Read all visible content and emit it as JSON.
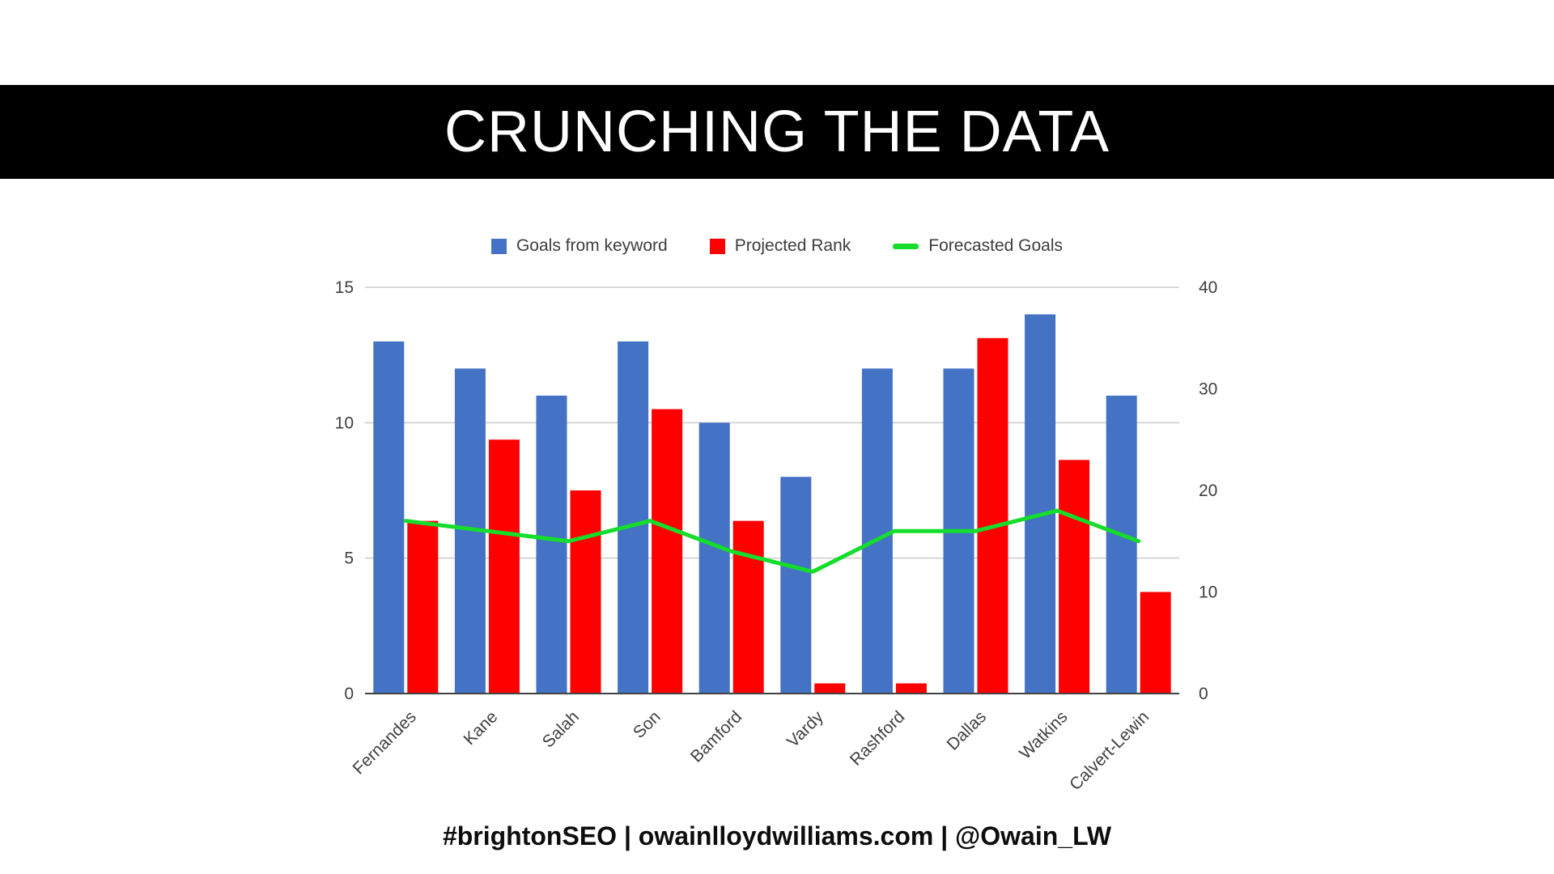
{
  "banner": {
    "title": "CRUNCHING THE DATA",
    "bg_color": "#000000",
    "text_color": "#ffffff"
  },
  "footer": {
    "text": "#brightonSEO | owainlloydwilliams.com | @Owain_LW"
  },
  "chart_data": {
    "type": "combo",
    "title": "",
    "categories": [
      "Fernandes",
      "Kane",
      "Salah",
      "Son",
      "Bamford",
      "Vardy",
      "Rashford",
      "Dallas",
      "Watkins",
      "Calvert-Lewin"
    ],
    "series": [
      {
        "name": "Goals from keyword",
        "type": "bar",
        "axis": "left",
        "color": "#4472c4",
        "values": [
          13,
          12,
          11,
          13,
          10,
          8,
          12,
          12,
          14,
          11
        ]
      },
      {
        "name": "Projected Rank",
        "type": "bar",
        "axis": "right",
        "color": "#ff0000",
        "values": [
          17,
          25,
          20,
          28,
          17,
          1,
          1,
          35,
          23,
          10
        ]
      },
      {
        "name": "Forecasted Goals",
        "type": "line",
        "axis": "right",
        "color": "#15dd2b",
        "values": [
          17,
          16,
          15,
          17,
          14,
          12,
          16,
          16,
          18,
          15
        ]
      }
    ],
    "left_axis": {
      "ticks": [
        0,
        5,
        10,
        15
      ],
      "max": 15
    },
    "right_axis": {
      "ticks": [
        0,
        10,
        20,
        30,
        40
      ],
      "max": 40
    },
    "grid": "horizontal lines at left-axis ticks only",
    "legend_position": "top-center",
    "category_label_rotation": -45
  }
}
